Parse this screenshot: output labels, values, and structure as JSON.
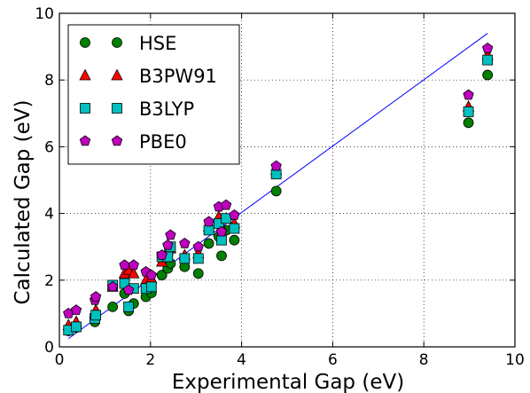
{
  "chart_data": {
    "type": "scatter",
    "title": "",
    "xlabel": "Experimental Gap (eV)",
    "ylabel": "Calculated Gap (eV)",
    "xlim": [
      0,
      10
    ],
    "ylim": [
      0,
      10
    ],
    "xticks": [
      0,
      2,
      4,
      6,
      8,
      10
    ],
    "yticks": [
      0,
      2,
      4,
      6,
      8,
      10
    ],
    "grid": true,
    "legend_position": "top-left",
    "fit_line": {
      "color": "#0000ff",
      "x": [
        0.2,
        9.4
      ],
      "y": [
        0.25,
        9.4
      ]
    },
    "series": [
      {
        "name": "HSE",
        "marker": "circle",
        "color": "#008000",
        "points": [
          [
            0.2,
            0.48
          ],
          [
            0.37,
            0.58
          ],
          [
            0.78,
            0.75
          ],
          [
            0.8,
            0.9
          ],
          [
            1.17,
            1.2
          ],
          [
            1.43,
            1.6
          ],
          [
            1.52,
            1.08
          ],
          [
            1.63,
            1.3
          ],
          [
            1.9,
            1.5
          ],
          [
            2.02,
            1.62
          ],
          [
            2.25,
            2.15
          ],
          [
            2.38,
            2.35
          ],
          [
            2.44,
            2.5
          ],
          [
            2.75,
            2.4
          ],
          [
            3.05,
            2.2
          ],
          [
            3.28,
            3.1
          ],
          [
            3.5,
            3.3
          ],
          [
            3.56,
            2.73
          ],
          [
            3.66,
            3.5
          ],
          [
            3.84,
            3.2
          ],
          [
            4.76,
            4.67
          ],
          [
            8.98,
            6.72
          ],
          [
            9.4,
            8.15
          ]
        ]
      },
      {
        "name": "B3PW91",
        "marker": "triangle",
        "color": "#ff0000",
        "points": [
          [
            0.2,
            0.65
          ],
          [
            0.37,
            0.75
          ],
          [
            0.78,
            1.0
          ],
          [
            0.8,
            1.1
          ],
          [
            1.17,
            1.8
          ],
          [
            1.43,
            2.2
          ],
          [
            1.52,
            2.3
          ],
          [
            1.63,
            2.2
          ],
          [
            1.9,
            2.0
          ],
          [
            2.02,
            2.05
          ],
          [
            2.25,
            2.55
          ],
          [
            2.38,
            2.9
          ],
          [
            2.44,
            2.95
          ],
          [
            2.75,
            2.75
          ],
          [
            3.05,
            2.8
          ],
          [
            3.28,
            3.6
          ],
          [
            3.5,
            3.9
          ],
          [
            3.56,
            3.6
          ],
          [
            3.66,
            3.85
          ],
          [
            3.84,
            3.7
          ],
          [
            4.76,
            5.3
          ],
          [
            8.98,
            7.2
          ],
          [
            9.4,
            8.75
          ]
        ]
      },
      {
        "name": "B3LYP",
        "marker": "square",
        "color": "#00bfbf",
        "points": [
          [
            0.2,
            0.5
          ],
          [
            0.37,
            0.6
          ],
          [
            0.78,
            0.85
          ],
          [
            0.8,
            0.95
          ],
          [
            1.17,
            1.85
          ],
          [
            1.43,
            1.9
          ],
          [
            1.52,
            1.2
          ],
          [
            1.63,
            1.75
          ],
          [
            1.9,
            1.75
          ],
          [
            2.02,
            1.8
          ],
          [
            2.25,
            2.7
          ],
          [
            2.38,
            2.7
          ],
          [
            2.44,
            3.0
          ],
          [
            2.75,
            2.65
          ],
          [
            3.05,
            2.65
          ],
          [
            3.28,
            3.5
          ],
          [
            3.5,
            3.7
          ],
          [
            3.56,
            3.2
          ],
          [
            3.66,
            3.85
          ],
          [
            3.84,
            3.55
          ],
          [
            4.76,
            5.18
          ],
          [
            8.98,
            7.05
          ],
          [
            9.4,
            8.6
          ]
        ]
      },
      {
        "name": "PBE0",
        "marker": "pentagon",
        "color": "#bf00bf",
        "points": [
          [
            0.2,
            1.0
          ],
          [
            0.37,
            1.1
          ],
          [
            0.78,
            1.4
          ],
          [
            0.8,
            1.5
          ],
          [
            1.17,
            1.8
          ],
          [
            1.43,
            2.45
          ],
          [
            1.52,
            1.7
          ],
          [
            1.63,
            2.45
          ],
          [
            1.9,
            2.25
          ],
          [
            2.02,
            2.15
          ],
          [
            2.25,
            2.75
          ],
          [
            2.38,
            3.05
          ],
          [
            2.44,
            3.35
          ],
          [
            2.75,
            3.1
          ],
          [
            3.05,
            3.0
          ],
          [
            3.28,
            3.75
          ],
          [
            3.5,
            4.2
          ],
          [
            3.56,
            3.45
          ],
          [
            3.66,
            4.25
          ],
          [
            3.84,
            3.95
          ],
          [
            4.76,
            5.42
          ],
          [
            8.98,
            7.55
          ],
          [
            9.4,
            8.95
          ]
        ]
      }
    ]
  }
}
